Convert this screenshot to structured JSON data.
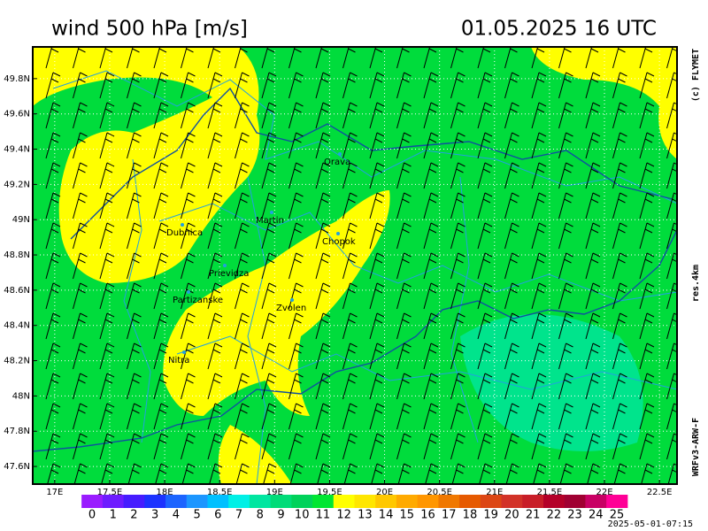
{
  "header": {
    "title": "wind 500 hPa [m/s]",
    "datetime": "01.05.2025   16 UTC"
  },
  "side_labels": {
    "copyright": "(c) FLYMET",
    "resolution": "res.4km",
    "model": "WRFv3-ARW-F"
  },
  "map": {
    "xlim": [
      16.8,
      22.66
    ],
    "ylim": [
      47.5,
      49.98
    ],
    "lon_ticks": [
      {
        "value": 17,
        "label": "17E"
      },
      {
        "value": 17.5,
        "label": "17.5E"
      },
      {
        "value": 18,
        "label": "18E"
      },
      {
        "value": 18.5,
        "label": "18.5E"
      },
      {
        "value": 19,
        "label": "19E"
      },
      {
        "value": 19.5,
        "label": "19.5E"
      },
      {
        "value": 20,
        "label": "20E"
      },
      {
        "value": 20.5,
        "label": "20.5E"
      },
      {
        "value": 21,
        "label": "21E"
      },
      {
        "value": 21.5,
        "label": "21.5E"
      },
      {
        "value": 22,
        "label": "22E"
      },
      {
        "value": 22.5,
        "label": "22.5E"
      }
    ],
    "lat_ticks": [
      {
        "value": 49.8,
        "label": "49.8N"
      },
      {
        "value": 49.6,
        "label": "49.6N"
      },
      {
        "value": 49.4,
        "label": "49.4N"
      },
      {
        "value": 49.2,
        "label": "49.2N"
      },
      {
        "value": 49,
        "label": "49N"
      },
      {
        "value": 48.8,
        "label": "48.8N"
      },
      {
        "value": 48.6,
        "label": "48.6N"
      },
      {
        "value": 48.4,
        "label": "48.4N"
      },
      {
        "value": 48.2,
        "label": "48.2N"
      },
      {
        "value": 48,
        "label": "48N"
      },
      {
        "value": 47.8,
        "label": "47.8N"
      },
      {
        "value": 47.6,
        "label": "47.6N"
      }
    ],
    "cities": [
      "Orava",
      "Martin",
      "Chopok",
      "Dubnica",
      "Prievidza",
      "Partizanske",
      "Zvolen",
      "Nitra"
    ]
  },
  "legend": {
    "values": [
      0,
      1,
      2,
      3,
      4,
      5,
      6,
      7,
      8,
      9,
      10,
      11,
      12,
      13,
      14,
      15,
      16,
      17,
      18,
      19,
      20,
      21,
      22,
      23,
      24,
      25
    ],
    "colors": [
      "#9a1cff",
      "#6e1cff",
      "#461cff",
      "#1c32ff",
      "#1c64ff",
      "#1c96ff",
      "#00c0ff",
      "#00f0e6",
      "#00e6a0",
      "#00dc78",
      "#00d25a",
      "#00e632",
      "#ffff00",
      "#ffe600",
      "#ffc800",
      "#ffaa00",
      "#ff9600",
      "#f07800",
      "#e65a00",
      "#dc4614",
      "#d23228",
      "#c81e28",
      "#b40028",
      "#a00032",
      "#c80064",
      "#ff0096"
    ]
  },
  "footer": {
    "timestamp": "2025-05-01-07:15"
  }
}
